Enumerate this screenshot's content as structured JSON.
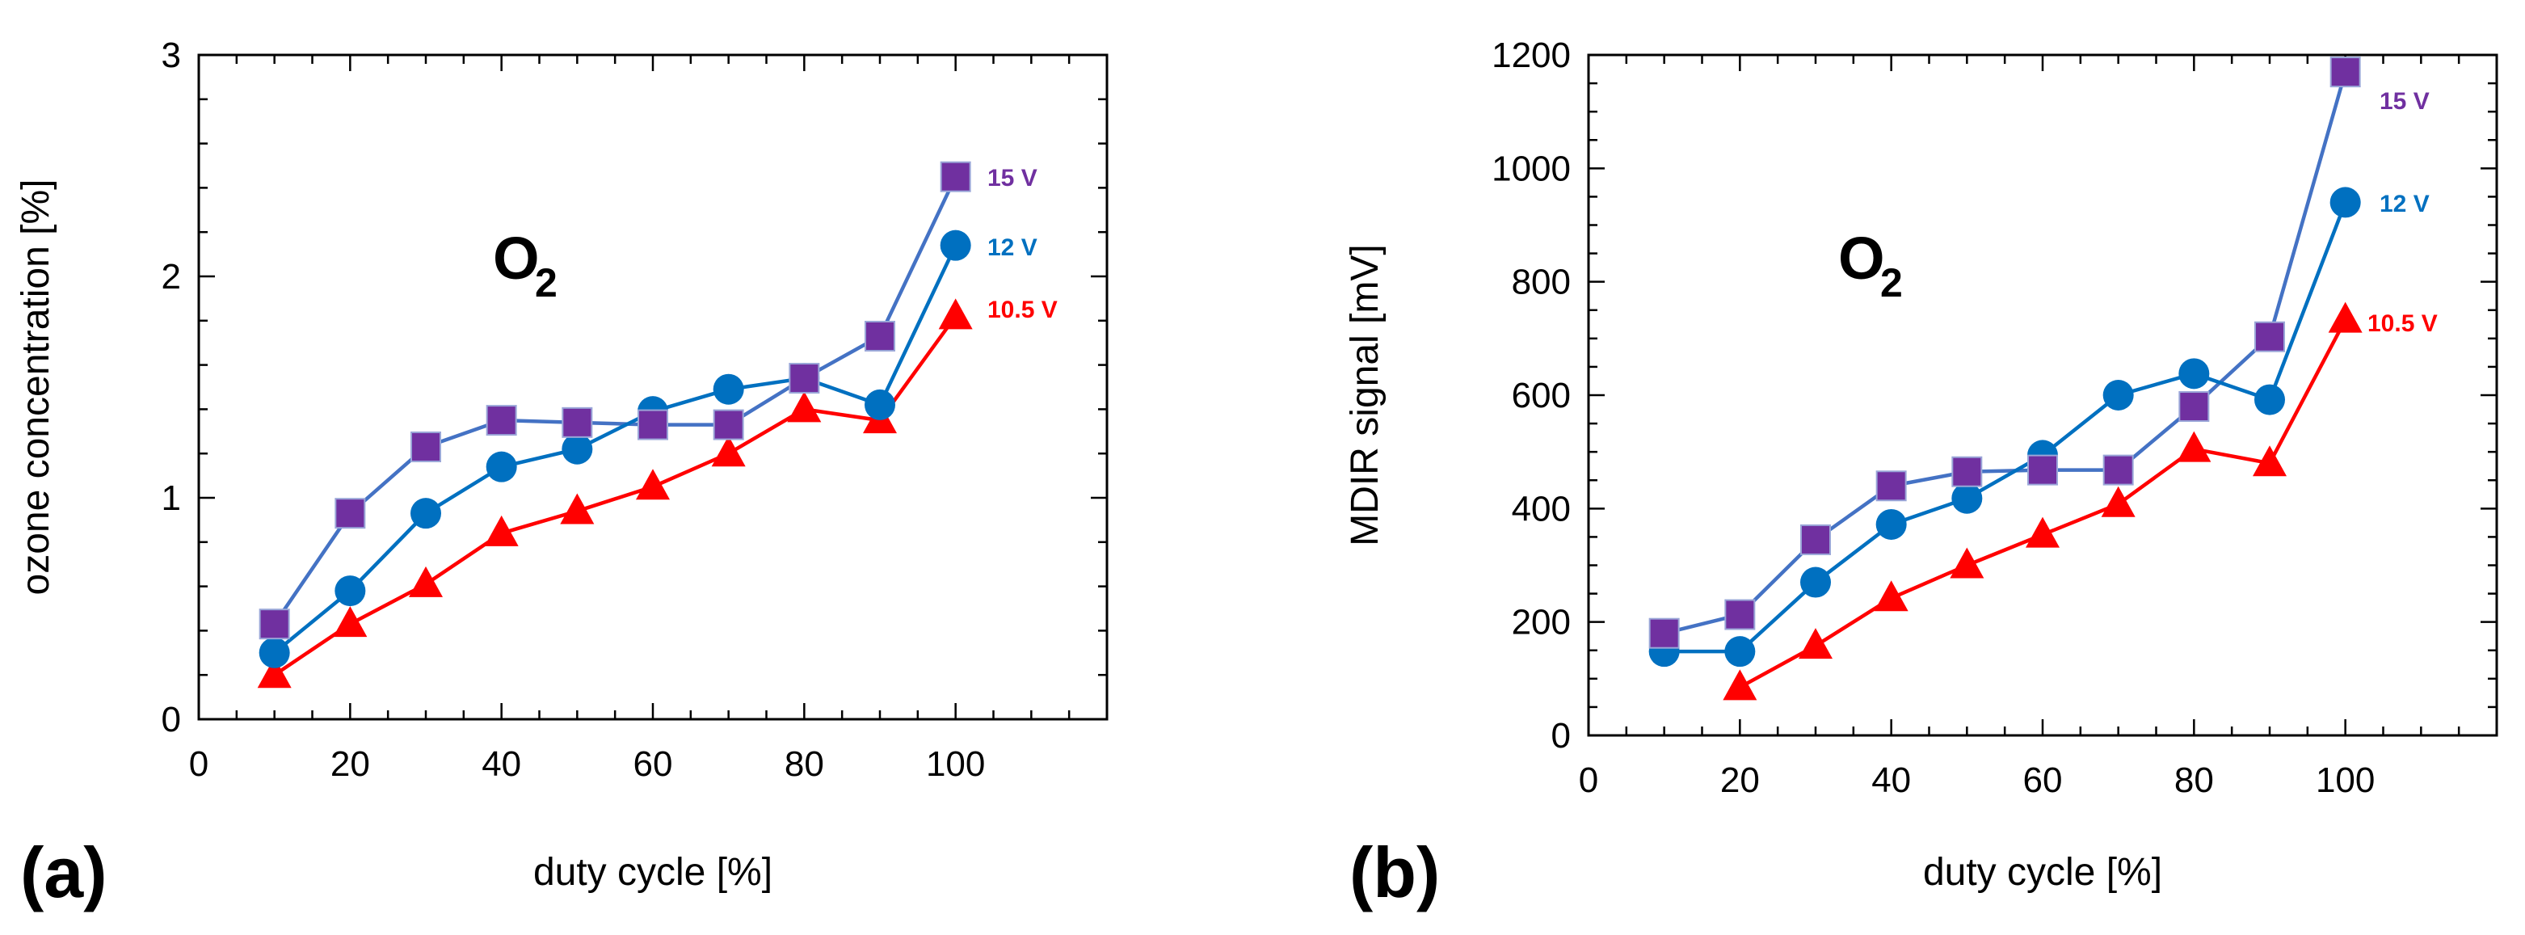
{
  "chart_data": [
    {
      "type": "line",
      "panel_label": "(a)",
      "xlabel": "duty cycle [%]",
      "ylabel": "ozone concentration [%]",
      "annotation": {
        "main": "O",
        "subscript": "2"
      },
      "xlim": [
        0,
        120
      ],
      "ylim": [
        0,
        3
      ],
      "xticks": [
        "0",
        "20",
        "40",
        "60",
        "80",
        "100"
      ],
      "yticks": [
        "0",
        "1",
        "2",
        "3"
      ],
      "series": [
        {
          "name": "15 V",
          "label": "15 V",
          "color": "#7030A0",
          "line_color": "#4472C4",
          "marker": "square",
          "x": [
            10,
            20,
            30,
            40,
            50,
            60,
            70,
            80,
            90,
            100
          ],
          "y": [
            0.43,
            0.93,
            1.23,
            1.35,
            1.34,
            1.33,
            1.33,
            1.54,
            1.73,
            2.45
          ]
        },
        {
          "name": "12 V",
          "label": "12 V",
          "color": "#0070C0",
          "line_color": "#0070C0",
          "marker": "circle",
          "x": [
            10,
            20,
            30,
            40,
            50,
            60,
            70,
            80,
            90,
            100
          ],
          "y": [
            0.3,
            0.58,
            0.93,
            1.14,
            1.22,
            1.39,
            1.49,
            1.54,
            1.42,
            2.14
          ]
        },
        {
          "name": "10.5 V",
          "label": "10.5 V",
          "color": "#FF0000",
          "line_color": "#FF0000",
          "marker": "triangle",
          "x": [
            10,
            20,
            30,
            40,
            50,
            60,
            70,
            80,
            90,
            100
          ],
          "y": [
            0.2,
            0.43,
            0.61,
            0.84,
            0.94,
            1.05,
            1.2,
            1.4,
            1.35,
            1.82
          ]
        }
      ]
    },
    {
      "type": "line",
      "panel_label": "(b)",
      "xlabel": "duty cycle [%]",
      "ylabel": "MDIR signal [mV]",
      "annotation": {
        "main": "O",
        "subscript": "2"
      },
      "xlim": [
        0,
        120
      ],
      "ylim": [
        0,
        1200
      ],
      "xticks": [
        "0",
        "20",
        "40",
        "60",
        "80",
        "100"
      ],
      "yticks": [
        "0",
        "200",
        "400",
        "600",
        "800",
        "1000",
        "1200"
      ],
      "series": [
        {
          "name": "15 V",
          "label": "15 V",
          "color": "#7030A0",
          "line_color": "#4472C4",
          "marker": "square",
          "x": [
            10,
            20,
            30,
            40,
            50,
            60,
            70,
            80,
            90,
            100
          ],
          "y": [
            180,
            213,
            345,
            440,
            465,
            468,
            468,
            580,
            703,
            1170
          ]
        },
        {
          "name": "12 V",
          "label": "12 V",
          "color": "#0070C0",
          "line_color": "#0070C0",
          "marker": "circle",
          "x": [
            10,
            20,
            30,
            40,
            50,
            60,
            70,
            80,
            90,
            100
          ],
          "y": [
            148,
            148,
            270,
            372,
            418,
            494,
            600,
            638,
            592,
            940
          ]
        },
        {
          "name": "10.5 V",
          "label": "10.5 V",
          "color": "#FF0000",
          "line_color": "#FF0000",
          "marker": "triangle",
          "x": [
            20,
            30,
            40,
            50,
            60,
            70,
            80,
            90,
            100
          ],
          "y": [
            85,
            158,
            242,
            300,
            354,
            408,
            505,
            480,
            733
          ]
        }
      ]
    }
  ]
}
